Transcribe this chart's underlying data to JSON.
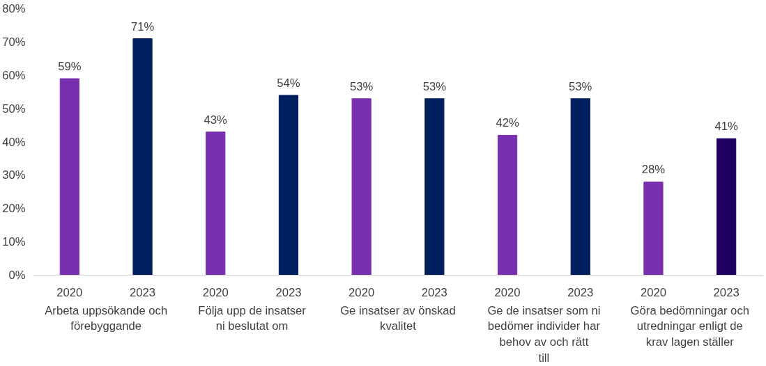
{
  "chart_data": {
    "type": "bar",
    "categories": [
      "2020",
      "2023",
      "2020",
      "2023",
      "2020",
      "2023",
      "2020",
      "2023",
      "2020",
      "2023"
    ],
    "values": [
      59,
      71,
      43,
      54,
      53,
      53,
      42,
      53,
      28,
      41
    ],
    "colors": [
      "#7830b0",
      "#002060",
      "#7830b0",
      "#002060",
      "#7830b0",
      "#002060",
      "#7830b0",
      "#002060",
      "#7830b0",
      "#1f0060"
    ],
    "value_labels": [
      "59%",
      "71%",
      "43%",
      "54%",
      "53%",
      "53%",
      "42%",
      "53%",
      "28%",
      "41%"
    ],
    "ylim": [
      0,
      80
    ],
    "yticks": [
      {
        "value": 0,
        "label": "0%"
      },
      {
        "value": 10,
        "label": "10%"
      },
      {
        "value": 20,
        "label": "20%"
      },
      {
        "value": 30,
        "label": "30%"
      },
      {
        "value": 40,
        "label": "40%"
      },
      {
        "value": 50,
        "label": "50%"
      },
      {
        "value": 60,
        "label": "60%"
      },
      {
        "value": 70,
        "label": "70%"
      },
      {
        "value": 80,
        "label": "80%"
      }
    ],
    "annotations": [
      "Arbeta uppsökande och förebyggande",
      "Följa upp de insatser ni beslutat om",
      "Ge insatser av önskad kvalitet",
      "Ge de insatser som ni bedömer individer har behov av och rätt till",
      "Göra bedömningar och utredningar enligt de krav lagen ställer"
    ],
    "grid": false
  }
}
